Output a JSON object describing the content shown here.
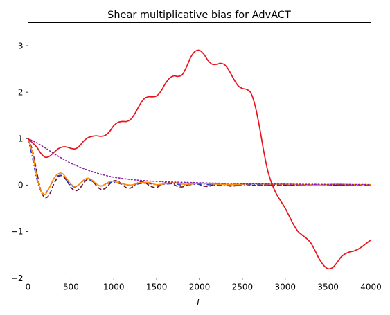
{
  "chart_data": {
    "type": "line",
    "title": "Shear multiplicative bias for AdvACT",
    "xlabel": "L",
    "ylabel": "",
    "xlim": [
      0,
      4000
    ],
    "ylim": [
      -2,
      3.5
    ],
    "xticks": [
      0,
      500,
      1000,
      1500,
      2000,
      2500,
      3000,
      3500,
      4000
    ],
    "yticks": [
      -2,
      -1,
      0,
      1,
      2,
      3
    ],
    "xtick_labels": [
      "0",
      "500",
      "1000",
      "1500",
      "2000",
      "2500",
      "3000",
      "3500",
      "4000"
    ],
    "ytick_labels": [
      "−2",
      "−1",
      "0",
      "1",
      "2",
      "3"
    ],
    "grid": false,
    "legend": "none",
    "series": [
      {
        "color": "#6b0d2a",
        "style": "dashed",
        "x": [
          0,
          50,
          100,
          150,
          200,
          250,
          300,
          350,
          400,
          450,
          500,
          550,
          600,
          650,
          700,
          750,
          800,
          850,
          900,
          950,
          1000,
          1050,
          1100,
          1150,
          1200,
          1250,
          1300,
          1350,
          1400,
          1450,
          1500,
          1550,
          1600,
          1650,
          1700,
          1750,
          1800,
          1850,
          1900,
          1950,
          2000,
          2050,
          2100,
          2150,
          2200,
          2250,
          2300,
          2350,
          2400,
          2450,
          2500,
          2600,
          2700,
          2800,
          2900,
          3000,
          3200,
          3400,
          3600,
          3800,
          4000
        ],
        "y": [
          1.0,
          0.75,
          0.3,
          -0.12,
          -0.27,
          -0.2,
          0.02,
          0.17,
          0.2,
          0.1,
          -0.05,
          -0.12,
          -0.08,
          0.05,
          0.13,
          0.1,
          -0.02,
          -0.09,
          -0.07,
          0.02,
          0.09,
          0.08,
          0.01,
          -0.06,
          -0.06,
          0.01,
          0.07,
          0.07,
          0.01,
          -0.04,
          -0.05,
          0.0,
          0.05,
          0.05,
          0.01,
          -0.03,
          -0.04,
          0.0,
          0.04,
          0.04,
          0.01,
          -0.02,
          -0.03,
          0.0,
          0.03,
          0.03,
          0.01,
          -0.02,
          -0.02,
          0.0,
          0.02,
          0.0,
          -0.01,
          0.01,
          0.0,
          0.0,
          0.0,
          0.0,
          0.0,
          0.0,
          0.0
        ]
      },
      {
        "color": "#1f3fd9",
        "style": "dashdot",
        "x": [
          0,
          50,
          100,
          150,
          200,
          250,
          300,
          350,
          400,
          450,
          500,
          550,
          600,
          650,
          700,
          750,
          800,
          850,
          900,
          950,
          1000,
          1100,
          1200,
          1300,
          1400,
          1500,
          1600,
          1700,
          1800,
          1900,
          2000,
          2200,
          2400,
          2600,
          2800,
          3000,
          3200,
          3400,
          3600,
          3800,
          4000
        ],
        "y": [
          1.0,
          0.6,
          0.15,
          -0.13,
          -0.18,
          -0.05,
          0.12,
          0.2,
          0.2,
          0.1,
          0.0,
          -0.04,
          0.02,
          0.1,
          0.12,
          0.08,
          0.01,
          -0.02,
          0.01,
          0.05,
          0.06,
          0.02,
          -0.01,
          0.03,
          0.04,
          0.0,
          0.02,
          0.03,
          0.0,
          0.01,
          0.02,
          0.0,
          0.0,
          0.01,
          0.0,
          -0.01,
          0.0,
          0.0,
          0.0,
          0.0,
          0.0
        ]
      },
      {
        "color": "#ff8c0a",
        "style": "solid",
        "x": [
          0,
          50,
          100,
          150,
          200,
          250,
          300,
          350,
          400,
          450,
          500,
          550,
          600,
          650,
          700,
          750,
          800,
          850,
          900,
          950,
          1000,
          1100,
          1200,
          1300,
          1400,
          1500,
          1600,
          1700,
          1800,
          1900,
          2000,
          2200,
          2400,
          2600,
          2800,
          3000,
          3200,
          3400,
          3600,
          3800,
          4000
        ],
        "y": [
          1.0,
          0.7,
          0.2,
          -0.12,
          -0.2,
          -0.05,
          0.14,
          0.24,
          0.25,
          0.14,
          0.02,
          -0.03,
          0.02,
          0.11,
          0.15,
          0.1,
          0.02,
          -0.02,
          0.02,
          0.07,
          0.08,
          0.03,
          0.0,
          0.05,
          0.06,
          0.01,
          0.03,
          0.05,
          0.02,
          0.02,
          0.04,
          0.02,
          0.01,
          0.03,
          0.02,
          0.02,
          0.01,
          0.0,
          0.02,
          0.01,
          0.01
        ]
      },
      {
        "color": "#8a1fa8",
        "style": "dotted",
        "x": [
          0,
          100,
          200,
          300,
          400,
          500,
          600,
          700,
          800,
          900,
          1000,
          1200,
          1400,
          1600,
          1800,
          2000,
          2200,
          2400,
          2600,
          2800,
          3000,
          3200,
          3400,
          3600,
          3800,
          4000
        ],
        "y": [
          1.0,
          0.91,
          0.8,
          0.68,
          0.57,
          0.47,
          0.39,
          0.32,
          0.26,
          0.21,
          0.17,
          0.12,
          0.09,
          0.07,
          0.06,
          0.05,
          0.04,
          0.035,
          0.03,
          0.025,
          0.02,
          0.018,
          0.016,
          0.014,
          0.012,
          0.01
        ]
      },
      {
        "color": "#e8131c",
        "style": "solid",
        "x": [
          0,
          100,
          150,
          200,
          250,
          300,
          350,
          400,
          450,
          500,
          550,
          600,
          650,
          700,
          750,
          800,
          850,
          900,
          950,
          1000,
          1050,
          1100,
          1150,
          1200,
          1250,
          1300,
          1350,
          1400,
          1450,
          1500,
          1550,
          1600,
          1650,
          1700,
          1750,
          1800,
          1850,
          1900,
          1950,
          2000,
          2050,
          2100,
          2150,
          2200,
          2250,
          2300,
          2350,
          2400,
          2450,
          2500,
          2550,
          2600,
          2650,
          2700,
          2750,
          2800,
          2850,
          2900,
          2950,
          3000,
          3050,
          3100,
          3150,
          3200,
          3250,
          3300,
          3350,
          3400,
          3450,
          3500,
          3550,
          3600,
          3650,
          3700,
          3750,
          3800,
          3850,
          3900,
          3950,
          4000
        ],
        "y": [
          1.0,
          0.82,
          0.68,
          0.6,
          0.62,
          0.7,
          0.78,
          0.82,
          0.82,
          0.79,
          0.78,
          0.84,
          0.95,
          1.02,
          1.05,
          1.06,
          1.05,
          1.07,
          1.15,
          1.28,
          1.35,
          1.37,
          1.37,
          1.42,
          1.55,
          1.72,
          1.85,
          1.9,
          1.9,
          1.92,
          2.02,
          2.18,
          2.3,
          2.35,
          2.34,
          2.38,
          2.55,
          2.76,
          2.88,
          2.9,
          2.82,
          2.68,
          2.6,
          2.6,
          2.62,
          2.58,
          2.45,
          2.28,
          2.14,
          2.08,
          2.06,
          1.98,
          1.7,
          1.25,
          0.72,
          0.28,
          0.0,
          -0.2,
          -0.35,
          -0.5,
          -0.68,
          -0.86,
          -1.0,
          -1.08,
          -1.15,
          -1.25,
          -1.42,
          -1.6,
          -1.73,
          -1.8,
          -1.78,
          -1.68,
          -1.55,
          -1.48,
          -1.44,
          -1.42,
          -1.38,
          -1.32,
          -1.25,
          -1.18
        ]
      }
    ]
  }
}
